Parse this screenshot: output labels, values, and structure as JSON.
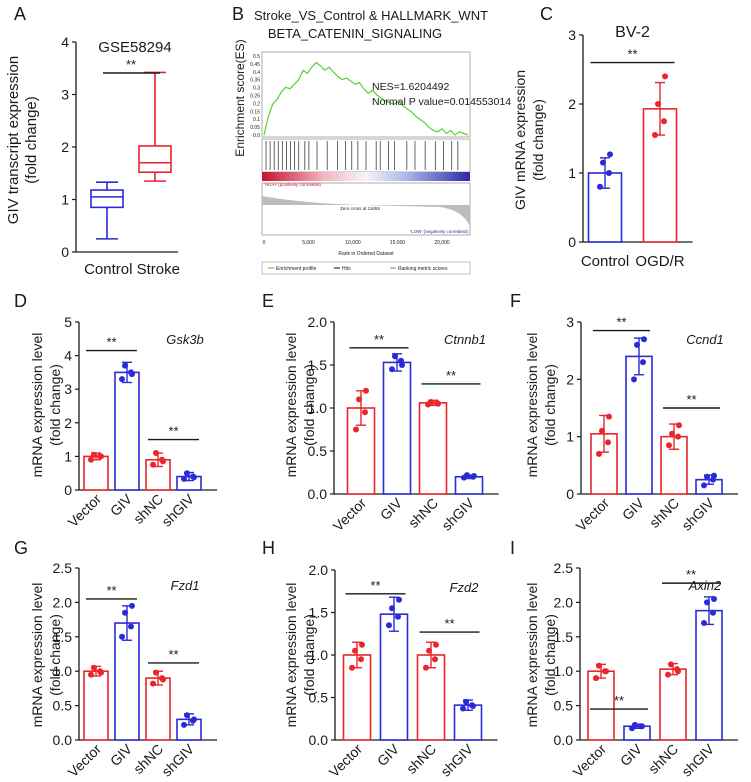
{
  "colors": {
    "red": "#e8262b",
    "blue": "#2a2ad6",
    "black": "#1a1a1a",
    "green": "#5ad12e",
    "gray": "#bdbdbd"
  },
  "chart_data": [
    {
      "panel": "A",
      "type": "box",
      "title": "GSE58294",
      "ylabel": [
        "GIV transcript expression",
        "(fold change)"
      ],
      "ylim": [
        0,
        4
      ],
      "yticks": [
        "0",
        "1",
        "2",
        "3",
        "4"
      ],
      "categories": [
        "Control",
        "Stroke"
      ],
      "xlabel_single": "Control Stroke",
      "boxes": [
        {
          "name": "Control",
          "min": 0.25,
          "q1": 0.85,
          "median": 1.05,
          "q3": 1.18,
          "max": 1.33,
          "color": "#2a2ad6"
        },
        {
          "name": "Stroke",
          "min": 1.35,
          "q1": 1.52,
          "median": 1.7,
          "q3": 2.02,
          "max": 3.42,
          "color": "#e8262b"
        }
      ],
      "significance": "**"
    },
    {
      "panel": "B",
      "type": "gsea",
      "title_lines": [
        "Stroke_VS_Control & HALLMARK_WNT",
        "BETA_CATENIN_SIGNALING"
      ],
      "ylabel": "Enrichment score(ES)",
      "es_ticks": [
        "0.5",
        "0.45",
        "0.4",
        "0.35",
        "0.3",
        "0.25",
        "0.2",
        "0.15",
        "0.1",
        "0.05",
        "0.0"
      ],
      "nes_text": "NES=1.6204492",
      "pvalue_text": "Normal P value=0.014553014",
      "es_curve": [
        0,
        0.12,
        0.2,
        0.23,
        0.28,
        0.31,
        0.3,
        0.33,
        0.36,
        0.42,
        0.4,
        0.44,
        0.47,
        0.45,
        0.42,
        0.44,
        0.41,
        0.38,
        0.36,
        0.37,
        0.35,
        0.33,
        0.34,
        0.3,
        0.27,
        0.29,
        0.26,
        0.24,
        0.22,
        0.21,
        0.2,
        0.22,
        0.19,
        0.17,
        0.15,
        0.12,
        0.1,
        0.08,
        0.05,
        0.03,
        0.02,
        0.04,
        0.01,
        0.03,
        0.0,
        0.02,
        0.01,
        0.0
      ],
      "hits": [
        0.01,
        0.03,
        0.05,
        0.07,
        0.09,
        0.11,
        0.13,
        0.15,
        0.17,
        0.2,
        0.22,
        0.26,
        0.31,
        0.36,
        0.4,
        0.43,
        0.46,
        0.5,
        0.55,
        0.57,
        0.61,
        0.64,
        0.7,
        0.74,
        0.79,
        0.84,
        0.88,
        0.92,
        0.95
      ],
      "pos_label": "'HIGH' (positively correlated)",
      "zero_cross": "Zero cross at 11655",
      "neg_label": "'LOW' (negatively correlated)",
      "xticks": [
        "0",
        "5,000",
        "10,000",
        "15,000",
        "20,000"
      ],
      "xlabel": "Rank in Ordered Dataset",
      "legend": [
        "Enrichment profile",
        "Hits",
        "Ranking metric scores"
      ]
    },
    {
      "panel": "C",
      "type": "bar",
      "title": "BV-2",
      "ylabel": [
        "GIV mRNA expression",
        "(fold change)"
      ],
      "ylim": [
        0,
        3
      ],
      "yticks": [
        "0",
        "1",
        "2",
        "3"
      ],
      "categories": [
        "Control",
        "OGD/R"
      ],
      "values": [
        1.0,
        1.93
      ],
      "errors": [
        0.22,
        0.38
      ],
      "points": [
        [
          0.8,
          1.0,
          1.15,
          1.27
        ],
        [
          1.55,
          1.75,
          2.0,
          2.4
        ]
      ],
      "colors": [
        "#2a2ad6",
        "#e8262b"
      ],
      "sig": [
        {
          "from": 0,
          "to": 1,
          "y": 2.6,
          "label": "**"
        }
      ]
    },
    {
      "panel": "D",
      "type": "bar",
      "gene": "Gsk3b",
      "ylabel": [
        "mRNA expression level",
        "(fold change)"
      ],
      "ylim": [
        0,
        5
      ],
      "yticks": [
        "0",
        "1",
        "2",
        "3",
        "4",
        "5"
      ],
      "categories": [
        "Vector",
        "GIV",
        "shNC",
        "shGIV"
      ],
      "values": [
        1.0,
        3.5,
        0.9,
        0.4
      ],
      "errors": [
        0.1,
        0.3,
        0.2,
        0.12
      ],
      "points": [
        [
          0.9,
          1.0,
          1.05,
          1.0
        ],
        [
          3.3,
          3.5,
          3.7,
          3.45
        ],
        [
          0.75,
          0.9,
          1.1,
          0.85
        ],
        [
          0.33,
          0.4,
          0.5,
          0.38
        ]
      ],
      "colors": [
        "#e8262b",
        "#2a2ad6",
        "#e8262b",
        "#2a2ad6"
      ],
      "sig": [
        {
          "from": 0,
          "to": 1,
          "y": 4.15,
          "label": "**"
        },
        {
          "from": 2,
          "to": 3,
          "y": 1.5,
          "label": "**"
        }
      ]
    },
    {
      "panel": "E",
      "type": "bar",
      "gene": "Ctnnb1",
      "ylabel": [
        "mRNA expression level",
        "(fold change)"
      ],
      "ylim": [
        0,
        2
      ],
      "yticks": [
        "0.0",
        "0.5",
        "1.0",
        "1.5",
        "2.0"
      ],
      "categories": [
        "Vector",
        "GIV",
        "shNC",
        "shGIV"
      ],
      "values": [
        1.0,
        1.53,
        1.06,
        0.2
      ],
      "errors": [
        0.2,
        0.1,
        0.03,
        0.02
      ],
      "points": [
        [
          0.75,
          0.95,
          1.1,
          1.2
        ],
        [
          1.45,
          1.55,
          1.6,
          1.5
        ],
        [
          1.04,
          1.06,
          1.07,
          1.05
        ],
        [
          0.19,
          0.2,
          0.22,
          0.21
        ]
      ],
      "colors": [
        "#e8262b",
        "#2a2ad6",
        "#e8262b",
        "#2a2ad6"
      ],
      "sig": [
        {
          "from": 0,
          "to": 1,
          "y": 1.7,
          "label": "**"
        },
        {
          "from": 2,
          "to": 3,
          "y": 1.28,
          "label": "**"
        }
      ]
    },
    {
      "panel": "F",
      "type": "bar",
      "gene": "Ccnd1",
      "ylabel": [
        "mRNA expression level",
        "(fold change)"
      ],
      "ylim": [
        0,
        3
      ],
      "yticks": [
        "0",
        "1",
        "2",
        "3"
      ],
      "categories": [
        "Vector",
        "GIV",
        "shNC",
        "shGIV"
      ],
      "values": [
        1.05,
        2.4,
        1.0,
        0.25
      ],
      "errors": [
        0.32,
        0.32,
        0.22,
        0.08
      ],
      "points": [
        [
          0.7,
          0.9,
          1.1,
          1.35
        ],
        [
          2.0,
          2.3,
          2.6,
          2.7
        ],
        [
          0.85,
          1.0,
          1.05,
          1.2
        ],
        [
          0.15,
          0.25,
          0.3,
          0.32
        ]
      ],
      "colors": [
        "#e8262b",
        "#2a2ad6",
        "#e8262b",
        "#2a2ad6"
      ],
      "sig": [
        {
          "from": 0,
          "to": 1,
          "y": 2.85,
          "label": "**"
        },
        {
          "from": 2,
          "to": 3,
          "y": 1.5,
          "label": "**"
        }
      ]
    },
    {
      "panel": "G",
      "type": "bar",
      "gene": "Fzd1",
      "ylabel": [
        "mRNA expression level",
        "(fold change)"
      ],
      "ylim": [
        0,
        2.5
      ],
      "yticks": [
        "0.0",
        "0.5",
        "1.0",
        "1.5",
        "2.0",
        "2.5"
      ],
      "categories": [
        "Vector",
        "GIV",
        "shNC",
        "shGIV"
      ],
      "values": [
        1.0,
        1.7,
        0.9,
        0.3
      ],
      "errors": [
        0.07,
        0.25,
        0.1,
        0.08
      ],
      "points": [
        [
          0.95,
          1.0,
          1.05,
          0.98
        ],
        [
          1.5,
          1.65,
          1.85,
          1.95
        ],
        [
          0.82,
          0.9,
          0.98,
          0.88
        ],
        [
          0.22,
          0.28,
          0.36,
          0.3
        ]
      ],
      "colors": [
        "#e8262b",
        "#2a2ad6",
        "#e8262b",
        "#2a2ad6"
      ],
      "sig": [
        {
          "from": 0,
          "to": 1,
          "y": 2.05,
          "label": "**"
        },
        {
          "from": 2,
          "to": 3,
          "y": 1.12,
          "label": "**"
        }
      ]
    },
    {
      "panel": "H",
      "type": "bar",
      "gene": "Fzd2",
      "ylabel": [
        "mRNA expression level",
        "(fold change)"
      ],
      "ylim": [
        0,
        2
      ],
      "yticks": [
        "0.0",
        "0.5",
        "1.0",
        "1.5",
        "2.0"
      ],
      "categories": [
        "Vector",
        "GIV",
        "shNC",
        "shGIV"
      ],
      "values": [
        1.0,
        1.48,
        1.0,
        0.41
      ],
      "errors": [
        0.15,
        0.2,
        0.15,
        0.06
      ],
      "points": [
        [
          0.85,
          0.95,
          1.05,
          1.12
        ],
        [
          1.35,
          1.45,
          1.55,
          1.65
        ],
        [
          0.85,
          0.95,
          1.05,
          1.12
        ],
        [
          0.37,
          0.41,
          0.45,
          0.4
        ]
      ],
      "colors": [
        "#e8262b",
        "#2a2ad6",
        "#e8262b",
        "#2a2ad6"
      ],
      "sig": [
        {
          "from": 0,
          "to": 1,
          "y": 1.72,
          "label": "**"
        },
        {
          "from": 2,
          "to": 3,
          "y": 1.27,
          "label": "**"
        }
      ]
    },
    {
      "panel": "I",
      "type": "bar",
      "gene": "Axin2",
      "ylabel": [
        "mRNA expression level",
        "(fold change)"
      ],
      "ylim": [
        0,
        2.5
      ],
      "yticks": [
        "0.0",
        "0.5",
        "1.0",
        "1.5",
        "2.0",
        "2.5"
      ],
      "categories": [
        "Vector",
        "GIV",
        "shNC",
        "shGIV"
      ],
      "values": [
        1.0,
        0.2,
        1.03,
        1.88
      ],
      "errors": [
        0.1,
        0.03,
        0.08,
        0.2
      ],
      "points": [
        [
          0.9,
          1.0,
          1.08,
          1.0
        ],
        [
          0.17,
          0.2,
          0.22,
          0.2
        ],
        [
          0.95,
          1.03,
          1.1,
          1.0
        ],
        [
          1.7,
          1.85,
          2.0,
          2.05
        ]
      ],
      "colors": [
        "#e8262b",
        "#2a2ad6",
        "#e8262b",
        "#2a2ad6"
      ],
      "sig": [
        {
          "from": 0,
          "to": 1,
          "y": 0.45,
          "label": "**"
        },
        {
          "from": 2,
          "to": 3,
          "y": 2.28,
          "label": "**"
        }
      ]
    }
  ]
}
